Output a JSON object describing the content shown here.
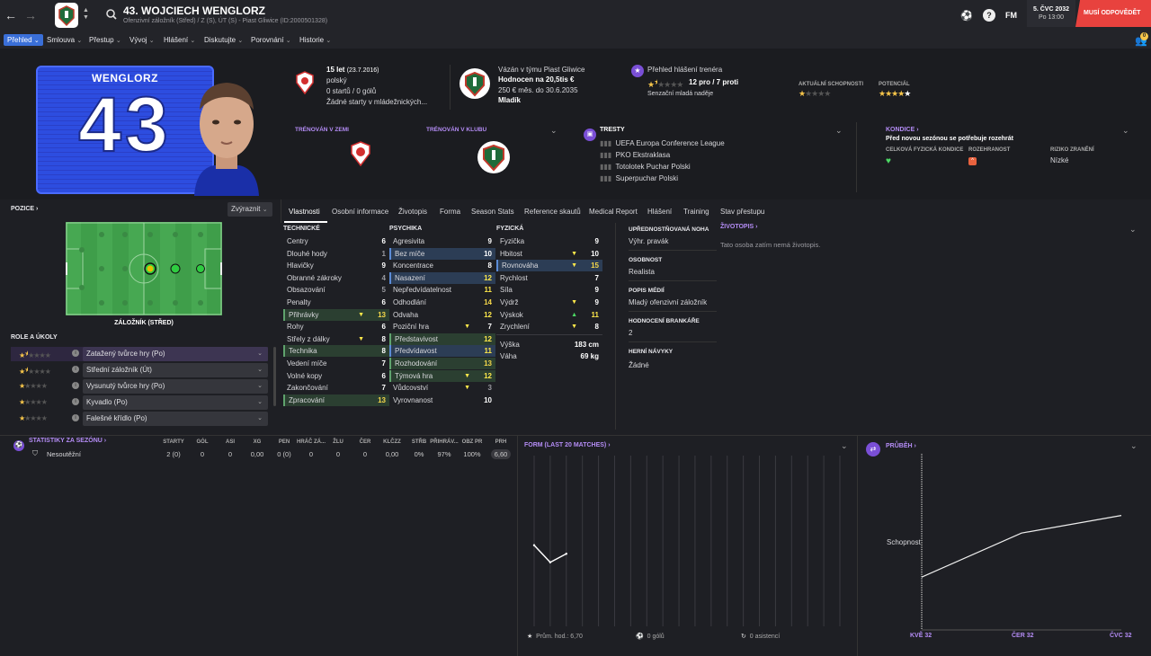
{
  "header": {
    "title": "43. WOJCIECH WENGLORZ",
    "subtitle": "Ofenzivní záložník (Střed) / Z (S), ÚT (S) - Piast Gliwice (ID:2000501328)",
    "date": "5. ČVC 2032",
    "time": "Po 13:00",
    "respond": "MUSÍ ODPOVĚDĚT",
    "fm": "FM",
    "notif_count": "0"
  },
  "nav": [
    "Přehled",
    "Smlouva",
    "Přestup",
    "Vývoj",
    "Hlášení",
    "Diskutujte",
    "Porovnání",
    "Historie"
  ],
  "player": {
    "shirt_name": "WENGLORZ",
    "number": "43",
    "age": "15 let",
    "dob": "(23.7.2016)",
    "nationality": "polský",
    "starts": "0 startů / 0 gólů",
    "no_starts": "Žádné starty v mládežnických...",
    "club_line": "Vázán v týmu Piast Gliwice",
    "value": "Hodnocen na 20,5tis €",
    "wage": "250 € měs. do 30.6.2035",
    "squad": "Mladík",
    "coach_title": "Přehled hlášení trenéra",
    "coach_pro": "12 pro / 7 proti",
    "coach_note": "Senzační mladá naděje",
    "current_ability": "AKTUÁLNÍ SCHOPNOSTI",
    "potential": "POTENCIÁL",
    "current_stars": 1.5,
    "potential_stars": 4.5
  },
  "trained": {
    "nation": "TRÉNOVÁN V ZEMI",
    "club": "TRÉNOVÁN V KLUBU"
  },
  "bans": {
    "title": "TRESTY",
    "items": [
      "UEFA Europa Conference League",
      "PKO Ekstraklasa",
      "Totolotek Puchar Polski",
      "Superpuchar Polski"
    ]
  },
  "condition": {
    "title": "KONDICE",
    "note": "Před novou sezónou se potřebuje rozehrát",
    "overall": "CELKOVÁ FYZICKÁ KONDICE",
    "sharpness": "ROZEHRANOST",
    "injury": "RIZIKO ZRANĚNÍ",
    "injury_val": "Nízké"
  },
  "position": {
    "title": "POZICE",
    "highlight": "Zvýraznit",
    "label": "ZÁLOŽNÍK (STŘED)"
  },
  "roles": {
    "title": "ROLE A ÚKOLY",
    "items": [
      {
        "name": "Zatažený tvůrce hry (Po)",
        "stars": 1.5
      },
      {
        "name": "Střední záložník (Út)",
        "stars": 1.5
      },
      {
        "name": "Vysunutý tvůrce hry (Po)",
        "stars": 1
      },
      {
        "name": "Kyvadlo (Po)",
        "stars": 1
      },
      {
        "name": "Falešné křídlo (Po)",
        "stars": 1
      }
    ]
  },
  "tabs": [
    "Vlastnosti",
    "Osobní informace",
    "Životopis",
    "Forma",
    "Season Stats",
    "Reference skautů",
    "Medical Report",
    "Hlášení",
    "Training",
    "Stav přestupu"
  ],
  "attributes": {
    "technical_title": "TECHNICKÉ",
    "mental_title": "PSYCHIKA",
    "physical_title": "FYZICKÁ",
    "technical": [
      {
        "n": "Centry",
        "v": "6",
        "h": ""
      },
      {
        "n": "Dlouhé hody",
        "v": "1",
        "h": ""
      },
      {
        "n": "Hlavičky",
        "v": "9",
        "h": ""
      },
      {
        "n": "Obranné zákroky",
        "v": "4",
        "h": ""
      },
      {
        "n": "Obsazování",
        "v": "5",
        "h": ""
      },
      {
        "n": "Penalty",
        "v": "6",
        "h": ""
      },
      {
        "n": "Přihrávky",
        "v": "13",
        "h": "g",
        "a": "up"
      },
      {
        "n": "Rohy",
        "v": "6",
        "h": ""
      },
      {
        "n": "Střely z dálky",
        "v": "8",
        "h": "",
        "a": "up"
      },
      {
        "n": "Technika",
        "v": "8",
        "h": "g"
      },
      {
        "n": "Vedení míče",
        "v": "7",
        "h": ""
      },
      {
        "n": "Volné kopy",
        "v": "6",
        "h": ""
      },
      {
        "n": "Zakončování",
        "v": "7",
        "h": ""
      },
      {
        "n": "Zpracování",
        "v": "13",
        "h": "g"
      }
    ],
    "mental": [
      {
        "n": "Agresivita",
        "v": "9",
        "h": ""
      },
      {
        "n": "Bez míče",
        "v": "10",
        "h": "b"
      },
      {
        "n": "Koncentrace",
        "v": "8",
        "h": ""
      },
      {
        "n": "Nasazení",
        "v": "12",
        "h": "b"
      },
      {
        "n": "Nepředvídatelnost",
        "v": "11",
        "h": ""
      },
      {
        "n": "Odhodlání",
        "v": "14",
        "h": ""
      },
      {
        "n": "Odvaha",
        "v": "12",
        "h": ""
      },
      {
        "n": "Poziční hra",
        "v": "7",
        "h": "",
        "a": "up"
      },
      {
        "n": "Představivost",
        "v": "12",
        "h": "g"
      },
      {
        "n": "Předvídavost",
        "v": "11",
        "h": "b"
      },
      {
        "n": "Rozhodování",
        "v": "13",
        "h": "g"
      },
      {
        "n": "Týmová hra",
        "v": "12",
        "h": "g",
        "a": "up"
      },
      {
        "n": "Vůdcovství",
        "v": "3",
        "h": "",
        "a": "up"
      },
      {
        "n": "Vyrovnanost",
        "v": "10",
        "h": ""
      }
    ],
    "physical": [
      {
        "n": "Fyzička",
        "v": "9",
        "h": ""
      },
      {
        "n": "Hbitost",
        "v": "10",
        "h": "",
        "a": "up"
      },
      {
        "n": "Rovnováha",
        "v": "15",
        "h": "b",
        "a": "up"
      },
      {
        "n": "Rychlost",
        "v": "7",
        "h": ""
      },
      {
        "n": "Síla",
        "v": "9",
        "h": ""
      },
      {
        "n": "Výdrž",
        "v": "9",
        "h": "",
        "a": "up"
      },
      {
        "n": "Výskok",
        "v": "11",
        "h": "",
        "a": "grn"
      },
      {
        "n": "Zrychlení",
        "v": "8",
        "h": "",
        "a": "up"
      }
    ],
    "height_label": "Výška",
    "height": "183 cm",
    "weight_label": "Váha",
    "weight": "69 kg"
  },
  "info": [
    {
      "label": "UPŘEDNOSTŇOVANÁ NOHA",
      "value": "Výhr. pravák"
    },
    {
      "label": "OSOBNOST",
      "value": "Realista"
    },
    {
      "label": "POPIS MÉDIÍ",
      "value": "Mladý ofenzivní záložník"
    },
    {
      "label": "HODNOCENÍ BRANKÁŘE",
      "value": "2"
    },
    {
      "label": "HERNÍ NÁVYKY",
      "value": "Žádné"
    }
  ],
  "bio": {
    "title": "ŽIVOTOPIS",
    "text": "Tato osoba zatím nemá životopis."
  },
  "season_stats": {
    "title": "STATISTIKY ZA SEZÓNU",
    "cols": [
      "STARTY",
      "GÓL",
      "ASI",
      "XG",
      "PEN",
      "HRÁČ ZÁ...",
      "ŽLU",
      "ČER",
      "KLČZZ",
      "STŘB",
      "PŘIHRÁV...",
      "OBZ PR",
      "PRH"
    ],
    "row": {
      "name": "Nesoutěžní",
      "vals": [
        "2 (0)",
        "0",
        "0",
        "0,00",
        "0 (0)",
        "0",
        "0",
        "0",
        "0,00",
        "0%",
        "97%",
        "100%",
        "6,60"
      ]
    }
  },
  "form": {
    "title": "FORM (LAST 20 MATCHES)",
    "avg": "Prům. hod.: 6,70",
    "goals": "0 gólů",
    "assists": "0 asistencí"
  },
  "progress": {
    "title": "PRŮBĚH",
    "ylabel": "Schopnost",
    "x_labels": [
      "KVĚ 32",
      "ČER 32",
      "ČVC 32"
    ]
  },
  "chart_data": [
    {
      "type": "line",
      "title": "FORM (LAST 20 MATCHES)",
      "x": [
        1,
        2,
        3
      ],
      "values": [
        6.9,
        6.5,
        6.7
      ],
      "ylim": [
        5,
        9
      ]
    },
    {
      "type": "line",
      "title": "PRŮBĚH",
      "ylabel": "Schopnost",
      "categories": [
        "KVĚ 32",
        "ČER 32",
        "ČVC 32"
      ],
      "x": [
        0,
        0.5,
        1
      ],
      "values": [
        0.3,
        0.55,
        0.65
      ],
      "ylim": [
        0,
        1
      ]
    }
  ],
  "colors": {
    "accent": "#b48cf5",
    "respond": "#e8423e",
    "nav_active": "#3a6fd8",
    "pitch": "#3f9e4a"
  }
}
